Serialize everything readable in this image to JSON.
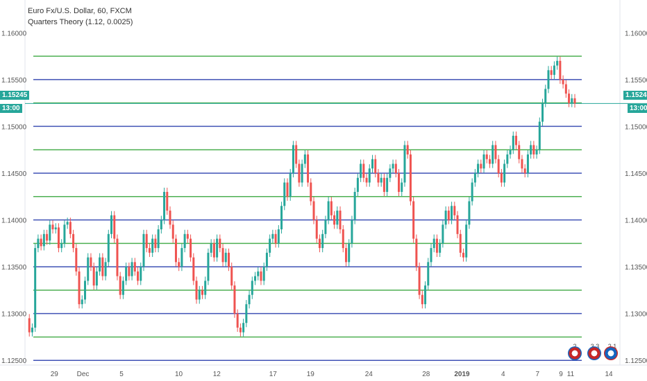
{
  "header": {
    "symbol_line": "Euro Fx/U.S. Dollar, 60, FXCM",
    "indicator_line": "Quarters Theory (1.12, 0.0025)"
  },
  "current_price": {
    "label": "1.15245",
    "time": "13:00",
    "value": 1.15245
  },
  "event_badges": [
    "2",
    "3 3",
    "2 1"
  ],
  "chart_data": {
    "type": "candlestick",
    "title": "Euro Fx/U.S. Dollar, 60, FXCM",
    "ylim": [
      1.1245,
      1.1635
    ],
    "y_ticks": [
      {
        "value": 1.16,
        "label": "1.16000"
      },
      {
        "value": 1.155,
        "label": "1.15500"
      },
      {
        "value": 1.15,
        "label": "1.15000"
      },
      {
        "value": 1.145,
        "label": "1.14500"
      },
      {
        "value": 1.14,
        "label": "1.14000"
      },
      {
        "value": 1.135,
        "label": "1.13500"
      },
      {
        "value": 1.13,
        "label": "1.13000"
      },
      {
        "value": 1.125,
        "label": "1.12500"
      }
    ],
    "x_ticks": [
      {
        "label": "29",
        "pos": 0.027,
        "bold": false
      },
      {
        "label": "Dec",
        "pos": 0.082,
        "bold": false
      },
      {
        "label": "5",
        "pos": 0.156,
        "bold": false
      },
      {
        "label": "10",
        "pos": 0.266,
        "bold": false
      },
      {
        "label": "12",
        "pos": 0.339,
        "bold": false
      },
      {
        "label": "17",
        "pos": 0.447,
        "bold": false
      },
      {
        "label": "19",
        "pos": 0.519,
        "bold": false
      },
      {
        "label": "24",
        "pos": 0.631,
        "bold": false
      },
      {
        "label": "28",
        "pos": 0.741,
        "bold": false
      },
      {
        "label": "2019",
        "pos": 0.81,
        "bold": true
      },
      {
        "label": "4",
        "pos": 0.889,
        "bold": false
      },
      {
        "label": "7",
        "pos": 0.955,
        "bold": false
      },
      {
        "label": "9",
        "pos": 1.0,
        "bold": false
      }
    ],
    "x_ticks_outside": [
      {
        "label": "11"
      },
      {
        "label": "14"
      }
    ],
    "quarter_levels": [
      {
        "value": 1.1575,
        "color": "#4caf50"
      },
      {
        "value": 1.155,
        "color": "#3f51b5"
      },
      {
        "value": 1.1525,
        "color": "#4caf50"
      },
      {
        "value": 1.15,
        "color": "#3f51b5"
      },
      {
        "value": 1.1475,
        "color": "#4caf50"
      },
      {
        "value": 1.145,
        "color": "#3f51b5"
      },
      {
        "value": 1.1425,
        "color": "#4caf50"
      },
      {
        "value": 1.14,
        "color": "#3f51b5"
      },
      {
        "value": 1.1375,
        "color": "#4caf50"
      },
      {
        "value": 1.135,
        "color": "#3f51b5"
      },
      {
        "value": 1.1325,
        "color": "#4caf50"
      },
      {
        "value": 1.13,
        "color": "#3f51b5"
      },
      {
        "value": 1.1275,
        "color": "#4caf50"
      },
      {
        "value": 1.125,
        "color": "#3f51b5"
      }
    ],
    "price_path": [
      1.1295,
      1.128,
      1.1285,
      1.137,
      1.138,
      1.1372,
      1.1385,
      1.1378,
      1.1395,
      1.139,
      1.1392,
      1.137,
      1.1375,
      1.1395,
      1.1398,
      1.1385,
      1.137,
      1.1345,
      1.131,
      1.1315,
      1.1335,
      1.136,
      1.135,
      1.133,
      1.1345,
      1.136,
      1.134,
      1.1355,
      1.1385,
      1.1405,
      1.138,
      1.134,
      1.132,
      1.1335,
      1.135,
      1.134,
      1.1355,
      1.1345,
      1.1335,
      1.135,
      1.1385,
      1.137,
      1.1365,
      1.138,
      1.137,
      1.139,
      1.14,
      1.143,
      1.141,
      1.1395,
      1.138,
      1.1355,
      1.135,
      1.137,
      1.1385,
      1.138,
      1.136,
      1.1335,
      1.1315,
      1.1325,
      1.132,
      1.1335,
      1.1365,
      1.1375,
      1.136,
      1.138,
      1.137,
      1.1355,
      1.1365,
      1.135,
      1.133,
      1.13,
      1.1285,
      1.128,
      1.129,
      1.131,
      1.132,
      1.1335,
      1.134,
      1.1345,
      1.1335,
      1.135,
      1.1365,
      1.138,
      1.1385,
      1.1375,
      1.139,
      1.1415,
      1.144,
      1.1425,
      1.145,
      1.148,
      1.146,
      1.144,
      1.146,
      1.147,
      1.144,
      1.142,
      1.14,
      1.138,
      1.137,
      1.1385,
      1.14,
      1.142,
      1.1405,
      1.1395,
      1.141,
      1.139,
      1.137,
      1.1355,
      1.1375,
      1.14,
      1.143,
      1.1445,
      1.146,
      1.1445,
      1.144,
      1.1455,
      1.1465,
      1.145,
      1.144,
      1.1445,
      1.143,
      1.1445,
      1.1455,
      1.146,
      1.145,
      1.143,
      1.144,
      1.148,
      1.147,
      1.142,
      1.138,
      1.135,
      1.132,
      1.131,
      1.133,
      1.1355,
      1.137,
      1.138,
      1.1365,
      1.1375,
      1.1395,
      1.141,
      1.14,
      1.1415,
      1.1405,
      1.1385,
      1.1365,
      1.136,
      1.1395,
      1.142,
      1.144,
      1.145,
      1.146,
      1.1455,
      1.147,
      1.1465,
      1.146,
      1.148,
      1.1465,
      1.145,
      1.144,
      1.146,
      1.147,
      1.1475,
      1.149,
      1.148,
      1.1465,
      1.1455,
      1.145,
      1.147,
      1.148,
      1.147,
      1.1475,
      1.1505,
      1.1525,
      1.154,
      1.156,
      1.1555,
      1.1565,
      1.157,
      1.155,
      1.1545,
      1.1535,
      1.1525,
      1.153,
      1.15245
    ]
  }
}
